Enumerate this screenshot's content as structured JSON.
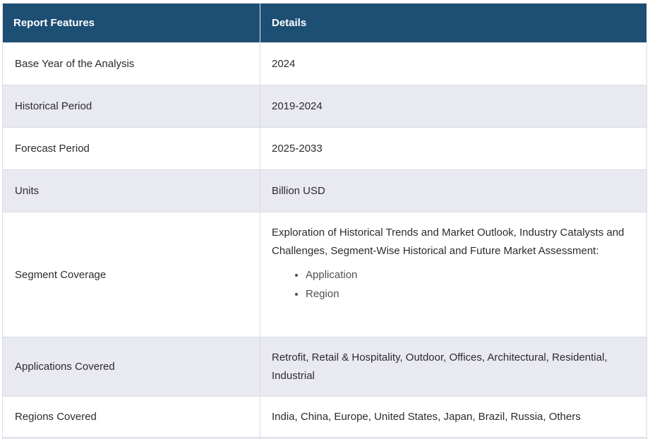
{
  "table": {
    "header": {
      "feature": "Report Features",
      "details": "Details"
    },
    "rows": [
      {
        "feature": "Base Year of the Analysis",
        "details": "2024"
      },
      {
        "feature": "Historical Period",
        "details": "2019-2024"
      },
      {
        "feature": "Forecast Period",
        "details": "2025-2033"
      },
      {
        "feature": "Units",
        "details": "Billion USD"
      },
      {
        "feature": "Segment Coverage",
        "details_intro": "Exploration of Historical Trends and Market Outlook, Industry Catalysts and Challenges, Segment-Wise Historical and Future Market Assessment:",
        "details_bullets": [
          "Application",
          "Region"
        ]
      },
      {
        "feature": "Applications Covered",
        "details": "Retrofit, Retail & Hospitality, Outdoor, Offices, Architectural, Residential, Industrial"
      },
      {
        "feature": "Regions Covered",
        "details": "India, China, Europe, United States, Japan, Brazil, Russia, Others"
      }
    ],
    "colors": {
      "header_bg": "#1d4e74",
      "header_text": "#ffffff",
      "stripe_bg": "#e9e9f2",
      "border": "#d9dce1",
      "body_text": "#2b2b2b",
      "bullet_text": "#4f4f4f"
    }
  }
}
